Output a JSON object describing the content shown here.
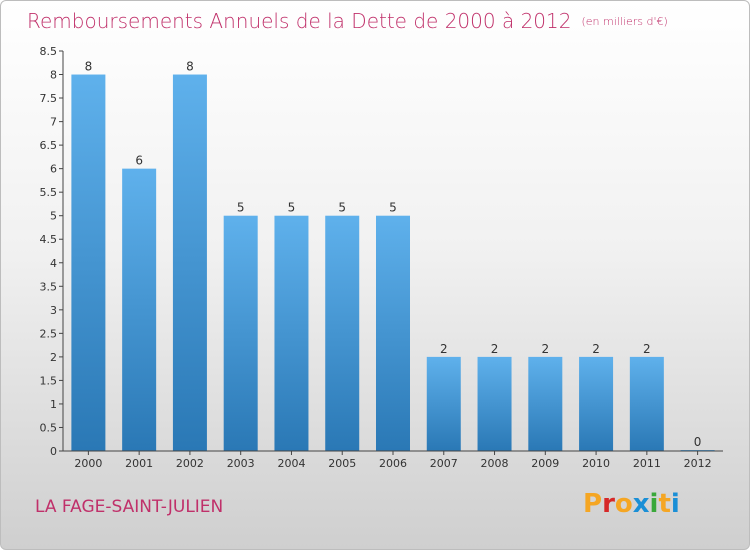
{
  "header": {
    "title": "Remboursements Annuels de la Dette de 2000 à 2012",
    "subtitle": "(en milliers d'€)"
  },
  "footer": {
    "place": "LA FAGE-SAINT-JULIEN",
    "logo": "Proxiti"
  },
  "colors": {
    "title": "#c0306a",
    "bar_top": "#5fb1ec",
    "bar_bottom": "#2a78b5",
    "logo": [
      "#f5a623",
      "#d62828",
      "#f5a623",
      "#1a8fd6",
      "#3aa83a",
      "#f5a623",
      "#1a8fd6"
    ]
  },
  "chart_data": {
    "type": "bar",
    "title": "Remboursements Annuels de la Dette de 2000 à 2012",
    "categories": [
      "2000",
      "2001",
      "2002",
      "2003",
      "2004",
      "2005",
      "2006",
      "2007",
      "2008",
      "2009",
      "2010",
      "2011",
      "2012"
    ],
    "values": [
      8,
      6,
      8,
      5,
      5,
      5,
      5,
      2,
      2,
      2,
      2,
      2,
      0
    ],
    "value_labels": [
      "8",
      "6",
      "8",
      "5",
      "5",
      "5",
      "5",
      "2",
      "2",
      "2",
      "2",
      "2",
      "0"
    ],
    "ylim": [
      0,
      8.5
    ],
    "yticks": [
      "0",
      "0.5",
      "1",
      "1.5",
      "2",
      "2.5",
      "3",
      "3.5",
      "4",
      "4.5",
      "5",
      "5.5",
      "6",
      "6.5",
      "7",
      "7.5",
      "8",
      "8.5"
    ],
    "xlabel": "",
    "ylabel": "",
    "grid": false,
    "legend": "none"
  }
}
